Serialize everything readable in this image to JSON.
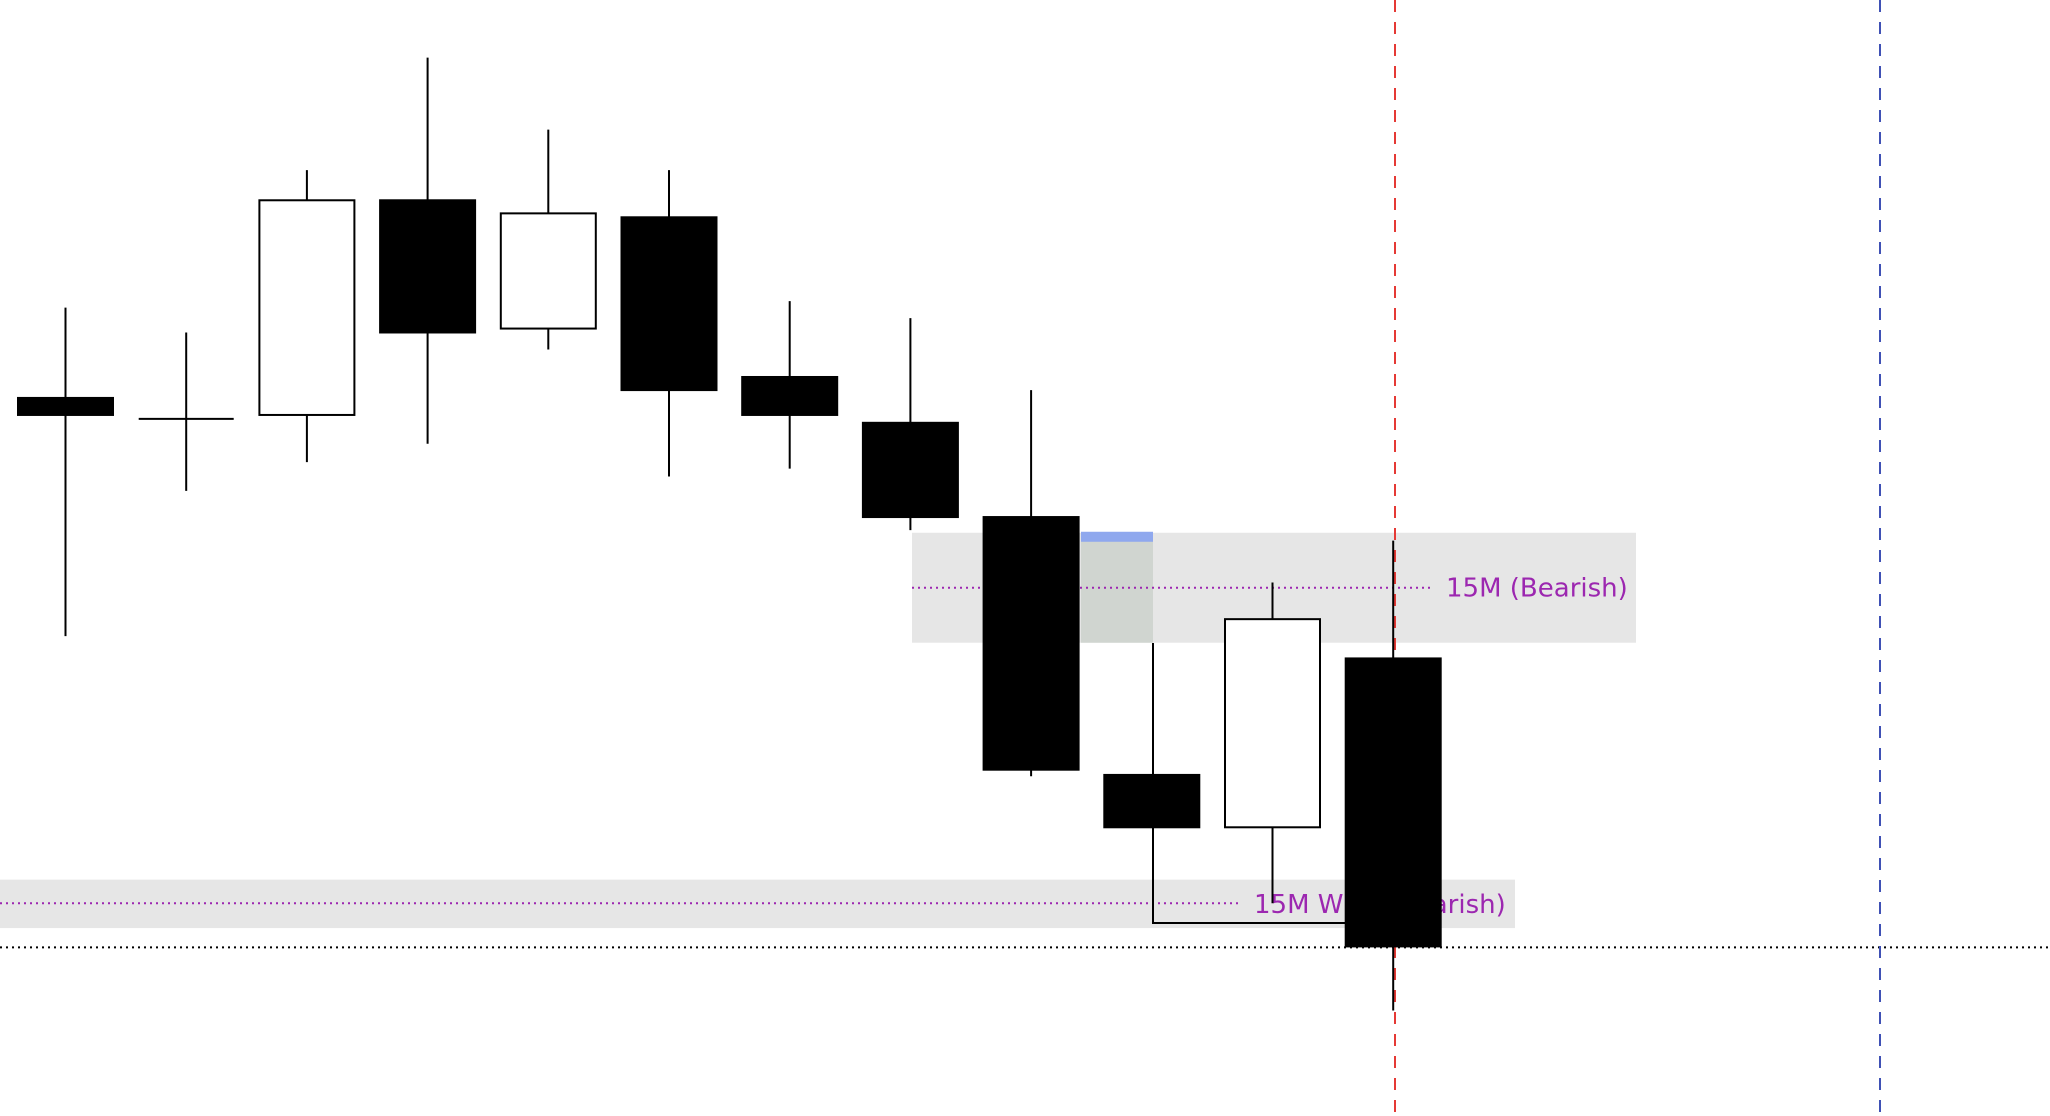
{
  "chart_data": {
    "type": "candlestick",
    "ylim": [
      0,
      100
    ],
    "grid": false,
    "colors": {
      "bearish": "#000000",
      "bullish": "#ffffff",
      "zone": "#e6e6e6",
      "zone_label": "#9c27b0",
      "highlight": "#d0d5d0",
      "highlight_top": "#8fa8ee",
      "red_line": "#e53935",
      "blue_line": "#3f51b5"
    },
    "candles": [
      {
        "o": 69.6,
        "h": 76.5,
        "l": 51.4,
        "c": 68.3
      },
      {
        "o": 68.0,
        "h": 74.6,
        "l": 62.5,
        "c": 68.0
      },
      {
        "o": 68.3,
        "h": 87.0,
        "l": 64.7,
        "c": 84.7
      },
      {
        "o": 84.7,
        "h": 95.6,
        "l": 66.1,
        "c": 74.6
      },
      {
        "o": 74.9,
        "h": 90.1,
        "l": 73.3,
        "c": 83.7
      },
      {
        "o": 83.4,
        "h": 87.0,
        "l": 63.6,
        "c": 70.2
      },
      {
        "o": 71.2,
        "h": 77.0,
        "l": 64.2,
        "c": 68.3
      },
      {
        "o": 67.7,
        "h": 75.7,
        "l": 59.5,
        "c": 60.5
      },
      {
        "o": 60.5,
        "h": 70.2,
        "l": 40.7,
        "c": 41.2
      },
      {
        "o": 40.8,
        "h": 40.8,
        "l": 36.8,
        "c": 36.8
      },
      {
        "o": 36.8,
        "h": 55.5,
        "l": 31.0,
        "c": 52.7
      },
      {
        "o": 49.7,
        "h": 58.7,
        "l": 22.8,
        "c": 27.7
      }
    ],
    "zones": [
      {
        "label": "15M (Bearish)",
        "top": 59.3,
        "bottom": 50.9,
        "level": 55.1
      },
      {
        "label": "15M Wick (Bearish)",
        "top": 32.8,
        "bottom": 29.1,
        "level": 31.0
      }
    ],
    "price_line": 27.7
  }
}
